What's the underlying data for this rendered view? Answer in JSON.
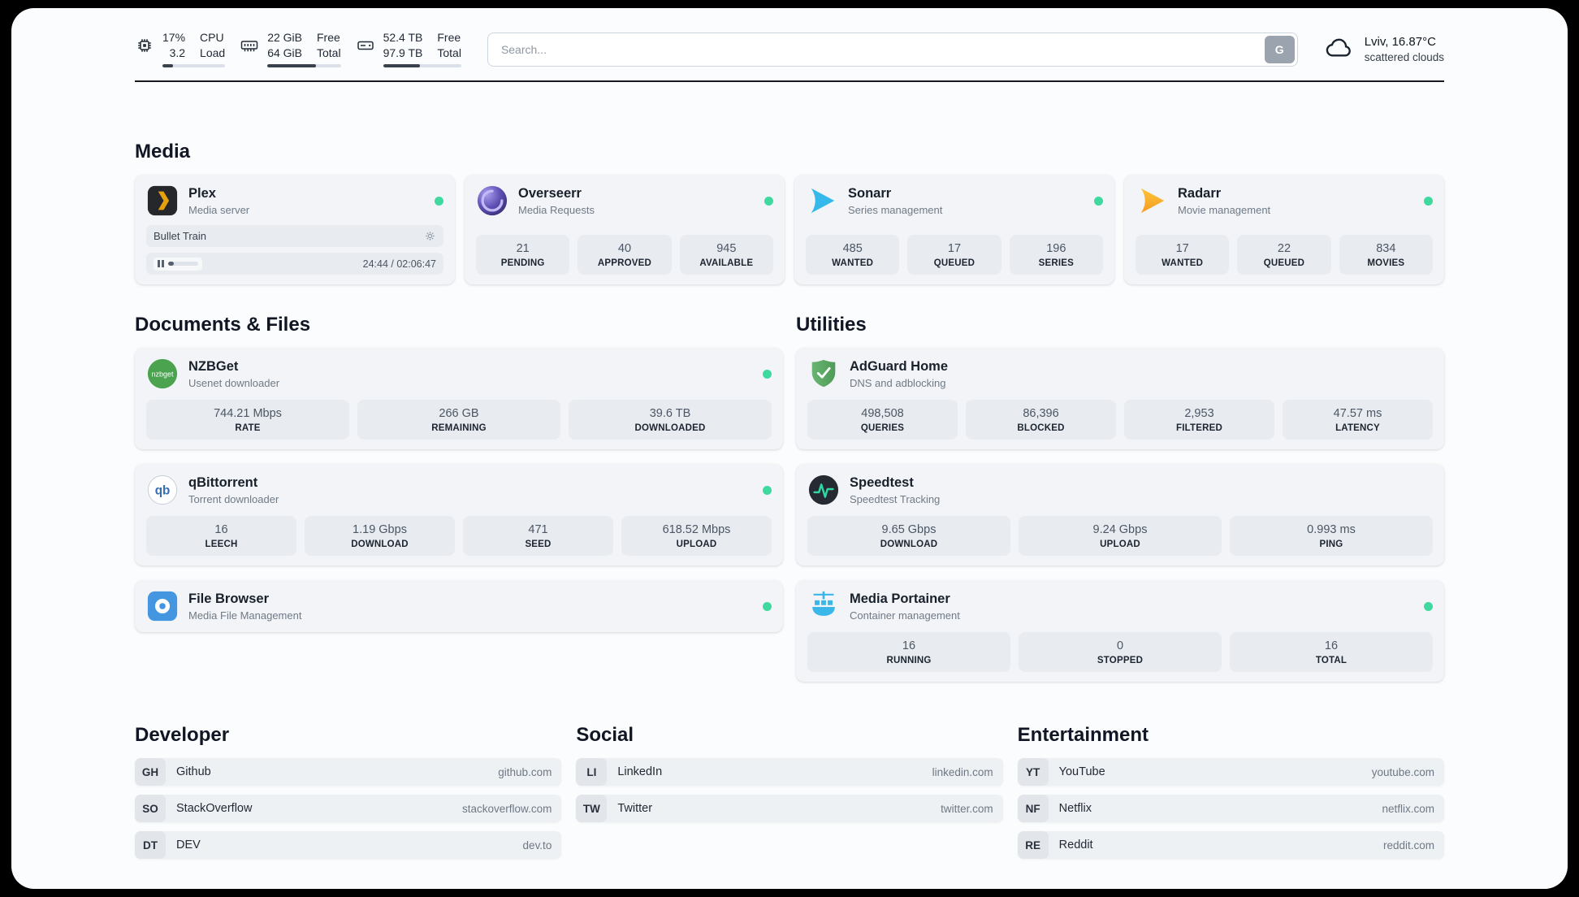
{
  "header": {
    "cpu": {
      "value": "17%",
      "sub": "3.2",
      "label_top": "CPU",
      "label_bottom": "Load",
      "percent": 17
    },
    "ram": {
      "value": "22 GiB",
      "sub": "64 GiB",
      "label_top": "Free",
      "label_bottom": "Total",
      "percent": 66
    },
    "disk": {
      "value": "52.4 TB",
      "sub": "97.9 TB",
      "label_top": "Free",
      "label_bottom": "Total",
      "percent": 47
    },
    "search": {
      "placeholder": "Search...",
      "button_label": "G"
    },
    "weather": {
      "location": "Lviv, 16.87°C",
      "condition": "scattered clouds"
    }
  },
  "sections": {
    "media": {
      "title": "Media",
      "plex": {
        "name": "Plex",
        "desc": "Media server",
        "now_playing": "Bullet Train",
        "time": "24:44 / 02:06:47",
        "progress_percent": 19
      },
      "overseerr": {
        "name": "Overseerr",
        "desc": "Media Requests",
        "stats": [
          {
            "value": "21",
            "label": "PENDING"
          },
          {
            "value": "40",
            "label": "APPROVED"
          },
          {
            "value": "945",
            "label": "AVAILABLE"
          }
        ]
      },
      "sonarr": {
        "name": "Sonarr",
        "desc": "Series management",
        "stats": [
          {
            "value": "485",
            "label": "WANTED"
          },
          {
            "value": "17",
            "label": "QUEUED"
          },
          {
            "value": "196",
            "label": "SERIES"
          }
        ]
      },
      "radarr": {
        "name": "Radarr",
        "desc": "Movie management",
        "stats": [
          {
            "value": "17",
            "label": "WANTED"
          },
          {
            "value": "22",
            "label": "QUEUED"
          },
          {
            "value": "834",
            "label": "MOVIES"
          }
        ]
      }
    },
    "documents": {
      "title": "Documents & Files",
      "nzbget": {
        "name": "NZBGet",
        "desc": "Usenet downloader",
        "stats": [
          {
            "value": "744.21 Mbps",
            "label": "RATE"
          },
          {
            "value": "266 GB",
            "label": "REMAINING"
          },
          {
            "value": "39.6 TB",
            "label": "DOWNLOADED"
          }
        ]
      },
      "qbittorrent": {
        "name": "qBittorrent",
        "desc": "Torrent downloader",
        "stats": [
          {
            "value": "16",
            "label": "LEECH"
          },
          {
            "value": "1.19 Gbps",
            "label": "DOWNLOAD"
          },
          {
            "value": "471",
            "label": "SEED"
          },
          {
            "value": "618.52 Mbps",
            "label": "UPLOAD"
          }
        ]
      },
      "filebrowser": {
        "name": "File Browser",
        "desc": "Media File Management"
      }
    },
    "utilities": {
      "title": "Utilities",
      "adguard": {
        "name": "AdGuard Home",
        "desc": "DNS and adblocking",
        "stats": [
          {
            "value": "498,508",
            "label": "QUERIES"
          },
          {
            "value": "86,396",
            "label": "BLOCKED"
          },
          {
            "value": "2,953",
            "label": "FILTERED"
          },
          {
            "value": "47.57 ms",
            "label": "LATENCY"
          }
        ]
      },
      "speedtest": {
        "name": "Speedtest",
        "desc": "Speedtest Tracking",
        "stats": [
          {
            "value": "9.65 Gbps",
            "label": "DOWNLOAD"
          },
          {
            "value": "9.24 Gbps",
            "label": "UPLOAD"
          },
          {
            "value": "0.993 ms",
            "label": "PING"
          }
        ]
      },
      "portainer": {
        "name": "Media Portainer",
        "desc": "Container management",
        "stats": [
          {
            "value": "16",
            "label": "RUNNING"
          },
          {
            "value": "0",
            "label": "STOPPED"
          },
          {
            "value": "16",
            "label": "TOTAL"
          }
        ]
      }
    }
  },
  "bookmarks": {
    "developer": {
      "title": "Developer",
      "items": [
        {
          "abbr": "GH",
          "name": "Github",
          "url": "github.com"
        },
        {
          "abbr": "SO",
          "name": "StackOverflow",
          "url": "stackoverflow.com"
        },
        {
          "abbr": "DT",
          "name": "DEV",
          "url": "dev.to"
        }
      ]
    },
    "social": {
      "title": "Social",
      "items": [
        {
          "abbr": "LI",
          "name": "LinkedIn",
          "url": "linkedin.com"
        },
        {
          "abbr": "TW",
          "name": "Twitter",
          "url": "twitter.com"
        }
      ]
    },
    "entertainment": {
      "title": "Entertainment",
      "items": [
        {
          "abbr": "YT",
          "name": "YouTube",
          "url": "youtube.com"
        },
        {
          "abbr": "NF",
          "name": "Netflix",
          "url": "netflix.com"
        },
        {
          "abbr": "RE",
          "name": "Reddit",
          "url": "reddit.com"
        }
      ]
    }
  },
  "colors": {
    "status_online": "#3fd9a0",
    "plex_yellow": "#e5a00d",
    "overseerr_purple": "#5d4fb3",
    "sonarr_blue": "#35b9ea",
    "radarr_orange": "#f59b23",
    "nzbget_green": "#4ba24f",
    "qbittorrent_blue": "#356db3",
    "filebrowser_blue": "#4596e0",
    "adguard_green": "#5ea968",
    "speedtest_dark": "#262a33",
    "portainer_blue": "#3ab7e8",
    "progress_fill": "#39414d"
  },
  "icons": {
    "cpu": "chip-icon",
    "ram": "memory-icon",
    "disk": "hard-drive-icon",
    "weather": "cloud-icon",
    "settings": "gear-icon",
    "pause": "pause-icon",
    "search_provider": "letter-G-button",
    "status": "green-dot"
  }
}
